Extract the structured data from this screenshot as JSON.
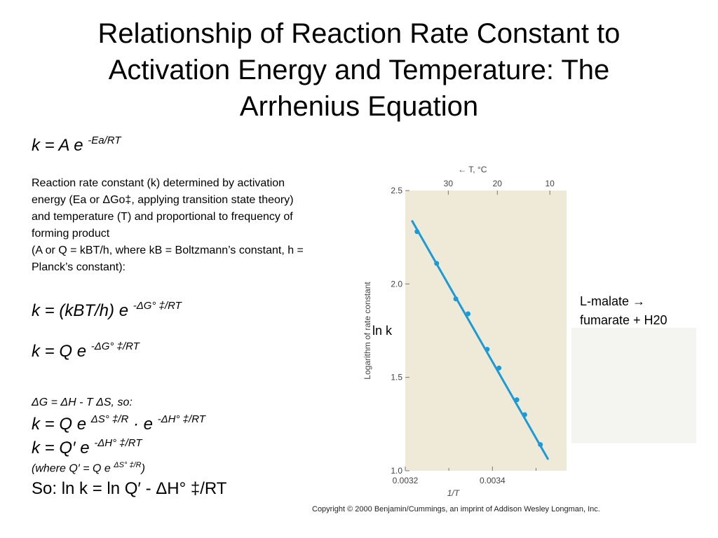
{
  "slide": {
    "title_lines": [
      "Relationship of Reaction Rate Constant to",
      "Activation Energy and Temperature: The",
      "Arrhenius Equation"
    ]
  },
  "equations": {
    "eq1_main": "k = A e ",
    "eq1_exp": "-Ea/RT",
    "eq2_main": "k = (kBT/h) e ",
    "eq2_exp": "-ΔG° ‡/RT",
    "eq3_main": "k = Q e ",
    "eq3_exp": "-ΔG° ‡/RT",
    "eq4_line": "ΔG = ΔH - T ΔS, so:",
    "eq5_main": "k = Q e ",
    "eq5_exp1": "ΔS° ‡/R",
    "eq5_mid": " · e ",
    "eq5_exp2": "-ΔH° ‡/RT",
    "eq6_main": "k = Q′ e ",
    "eq6_exp": "-ΔH° ‡/RT",
    "eq7_line": "(where Q′ = Q e ",
    "eq7_exp": "ΔS° ‡/R",
    "eq7_close": ")",
    "eq8_line": "So: ln k = ln Q′ - ΔH° ‡/RT"
  },
  "description_lines": [
    "Reaction rate constant (k) determined by activation",
    "energy (Ea or ΔGo‡, applying transition state theory)",
    "and temperature (T) and proportional to frequency of",
    "forming product",
    "(A or Q = kBT/h, where kB = Boltzmann’s constant, h =",
    "Planck’s constant):"
  ],
  "side_labels": {
    "lnk": "ln k",
    "reaction_line1": "L-malate →",
    "reaction_line2": "fumarate + H20"
  },
  "copyright": "Copyright © 2000 Benjamin/Cummings, an imprint of Addison Wesley Longman, Inc.",
  "chart_data": {
    "type": "line",
    "title": "",
    "xlabel": "1/T",
    "ylabel": "Logarithm of rate constant",
    "top_axis_label": "← T, °C",
    "xlim": [
      0.0032,
      0.00357
    ],
    "ylim": [
      1.0,
      2.5
    ],
    "x_ticks": [
      0.0032,
      0.0034
    ],
    "x_tick_labels": [
      "0.0032",
      "0.0034"
    ],
    "y_ticks": [
      1.0,
      1.5,
      2.0,
      2.5
    ],
    "y_tick_labels": [
      "1.0",
      "1.5",
      "2.0",
      "2.5"
    ],
    "top_ticks_celsius": [
      30,
      20,
      10
    ],
    "top_tick_labels": [
      "30",
      "20",
      "10"
    ],
    "line_color": "#1a9ad6",
    "series": [
      {
        "x": [
          0.003227,
          0.003272,
          0.003316,
          0.003344,
          0.003388,
          0.003415,
          0.003456,
          0.003474,
          0.00351
        ],
        "y": [
          2.28,
          2.11,
          1.92,
          1.84,
          1.65,
          1.55,
          1.38,
          1.3,
          1.14
        ]
      }
    ],
    "fit_line": {
      "x": [
        0.003215,
        0.003528
      ],
      "y": [
        2.34,
        1.06
      ]
    },
    "grid": false
  }
}
